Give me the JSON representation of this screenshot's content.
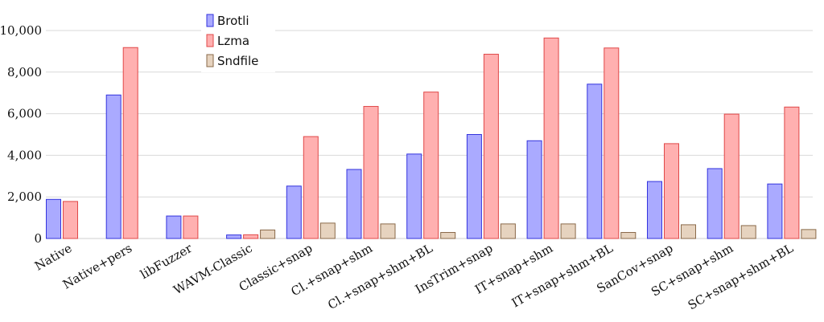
{
  "chart_data": {
    "type": "bar",
    "title": "",
    "xlabel": "",
    "ylabel": "",
    "ylim": [
      0,
      10000
    ],
    "yticks": [
      "0",
      "2,000",
      "4,000",
      "6,000",
      "8,000",
      "10,000"
    ],
    "ytick_values": [
      0,
      2000,
      4000,
      6000,
      8000,
      10000
    ],
    "grid": true,
    "legend_position": "top-left",
    "categories": [
      "Native",
      "Native+pers",
      "libFuzzer",
      "WAVM-Classic",
      "Classic+snap",
      "Cl.+snap+shm",
      "Cl.+snap+shm+BL",
      "InsTrim+snap",
      "IT+snap+shm",
      "IT+snap+shm+BL",
      "SanCov+snap",
      "SC+snap+shm",
      "SC+snap+shm+BL"
    ],
    "series": [
      {
        "name": "Brotli",
        "color": "#aaaaff",
        "edge": "#3333dd",
        "values": [
          1880,
          6900,
          1080,
          170,
          2520,
          3320,
          4060,
          5000,
          4700,
          7420,
          2740,
          3360,
          2620
        ]
      },
      {
        "name": "Lzma",
        "color": "#ffb0b0",
        "edge": "#e04848",
        "values": [
          1780,
          9180,
          1080,
          180,
          4900,
          6350,
          7040,
          8860,
          9640,
          9160,
          4560,
          5980,
          6320
        ]
      },
      {
        "name": "Sndfile",
        "color": "#e6d3bf",
        "edge": "#8a6a4a",
        "values": [
          null,
          null,
          null,
          410,
          740,
          700,
          290,
          700,
          700,
          290,
          660,
          620,
          430
        ]
      }
    ]
  }
}
